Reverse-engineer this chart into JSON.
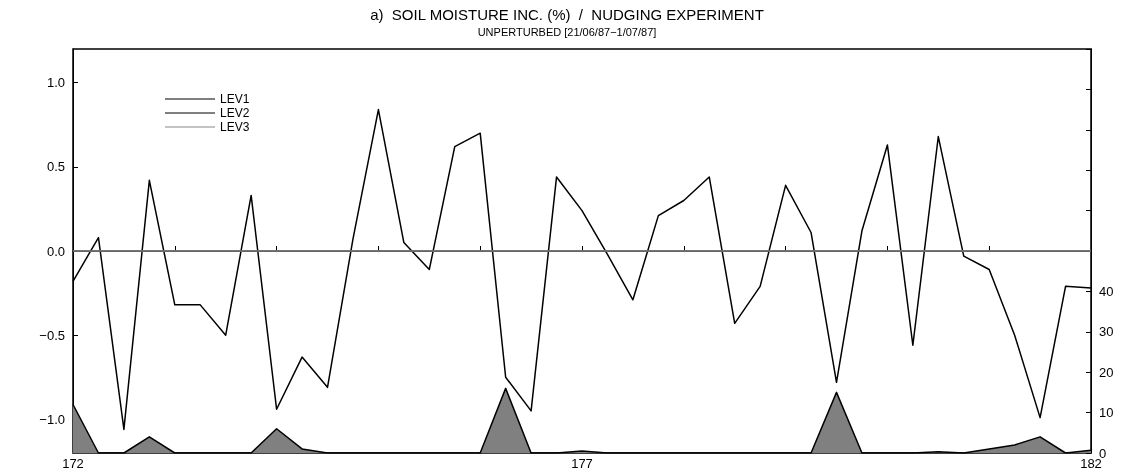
{
  "chart_data": {
    "type": "line",
    "title": "a)  SOIL MOISTURE INC. (%)  /  NUDGING EXPERIMENT",
    "subtitle": "UNPERTURBED [21/06/87−1/07/87]",
    "x": [
      172,
      172.25,
      172.5,
      172.75,
      173,
      173.25,
      173.5,
      173.75,
      174,
      174.25,
      174.5,
      174.75,
      175,
      175.25,
      175.5,
      175.75,
      176,
      176.25,
      176.5,
      176.75,
      177,
      177.25,
      177.5,
      177.75,
      178,
      178.25,
      178.5,
      178.75,
      179,
      179.25,
      179.5,
      179.75,
      180,
      180.25,
      180.5,
      180.75,
      181,
      181.25,
      181.5,
      181.75,
      182
    ],
    "series": [
      {
        "name": "LEV1",
        "color": "#000000",
        "values": [
          -0.18,
          0.08,
          -1.06,
          0.42,
          -0.32,
          -0.32,
          -0.5,
          0.33,
          -0.94,
          -0.63,
          -0.81,
          0.07,
          0.84,
          0.05,
          -0.11,
          0.62,
          0.7,
          -0.75,
          -0.95,
          0.44,
          0.24,
          -0.02,
          -0.29,
          0.21,
          0.3,
          0.44,
          -0.43,
          -0.21,
          0.39,
          0.11,
          -0.78,
          0.12,
          0.63,
          -0.56,
          0.68,
          -0.03,
          -0.11,
          -0.5,
          -0.99,
          -0.21,
          -0.22
        ]
      },
      {
        "name": "LEV2",
        "color": "#000000",
        "values": [
          0,
          0,
          0,
          0,
          0,
          0,
          0,
          0,
          0,
          0,
          0,
          0,
          0,
          0,
          0,
          0,
          0,
          0,
          0,
          0,
          0,
          0,
          0,
          0,
          0,
          0,
          0,
          0,
          0,
          0,
          0,
          0,
          0,
          0,
          0,
          0,
          0,
          0,
          0,
          0,
          0
        ]
      },
      {
        "name": "LEV3",
        "color": "#888888",
        "values": [
          0,
          0,
          0,
          0,
          0,
          0,
          0,
          0,
          0,
          0,
          0,
          0,
          0,
          0,
          0,
          0,
          0,
          0,
          0,
          0,
          0,
          0,
          0,
          0,
          0,
          0,
          0,
          0,
          0,
          0,
          0,
          0,
          0,
          0,
          0,
          0,
          0,
          0,
          0,
          0,
          0
        ]
      },
      {
        "type": "area",
        "axis": "y2",
        "color": "#808080",
        "values": [
          12,
          0,
          0,
          4,
          0,
          0,
          0,
          0,
          6,
          1,
          0,
          0,
          0,
          0,
          0,
          0,
          0,
          16,
          0,
          0,
          0.5,
          0,
          0,
          0,
          0,
          0,
          0,
          0,
          0,
          0,
          15,
          0,
          0,
          0,
          0.3,
          0,
          1,
          2,
          4,
          0,
          0.7
        ]
      }
    ],
    "xlim": [
      172,
      182
    ],
    "xticks": [
      172,
      {
        "value": 173,
        "label": null
      },
      {
        "value": 174,
        "label": null
      },
      {
        "value": 175,
        "label": null
      },
      {
        "value": 176,
        "label": null
      },
      177,
      {
        "value": 178,
        "label": null
      },
      {
        "value": 179,
        "label": null
      },
      {
        "value": 180,
        "label": null
      },
      {
        "value": 181,
        "label": null
      },
      182
    ],
    "ylim": [
      -1.2,
      1.2
    ],
    "yticks": [
      {
        "value": -1,
        "label": "−1.0"
      },
      {
        "value": -0.5,
        "label": "−0.5"
      },
      {
        "value": 0,
        "label": "0.0"
      },
      {
        "value": 0.5,
        "label": "0.5"
      },
      {
        "value": 1,
        "label": "1.0"
      }
    ],
    "y2lim": [
      0,
      100
    ],
    "y2ticks": [
      0,
      10,
      20,
      30,
      40,
      {
        "value": 50,
        "label": null
      },
      {
        "value": 60,
        "label": null
      },
      {
        "value": 70,
        "label": null
      },
      {
        "value": 80,
        "label": null
      },
      {
        "value": 90,
        "label": null
      },
      {
        "value": 100,
        "label": null
      }
    ],
    "grid": false,
    "legend": "top left",
    "marker": "none",
    "line_style": "solid"
  }
}
